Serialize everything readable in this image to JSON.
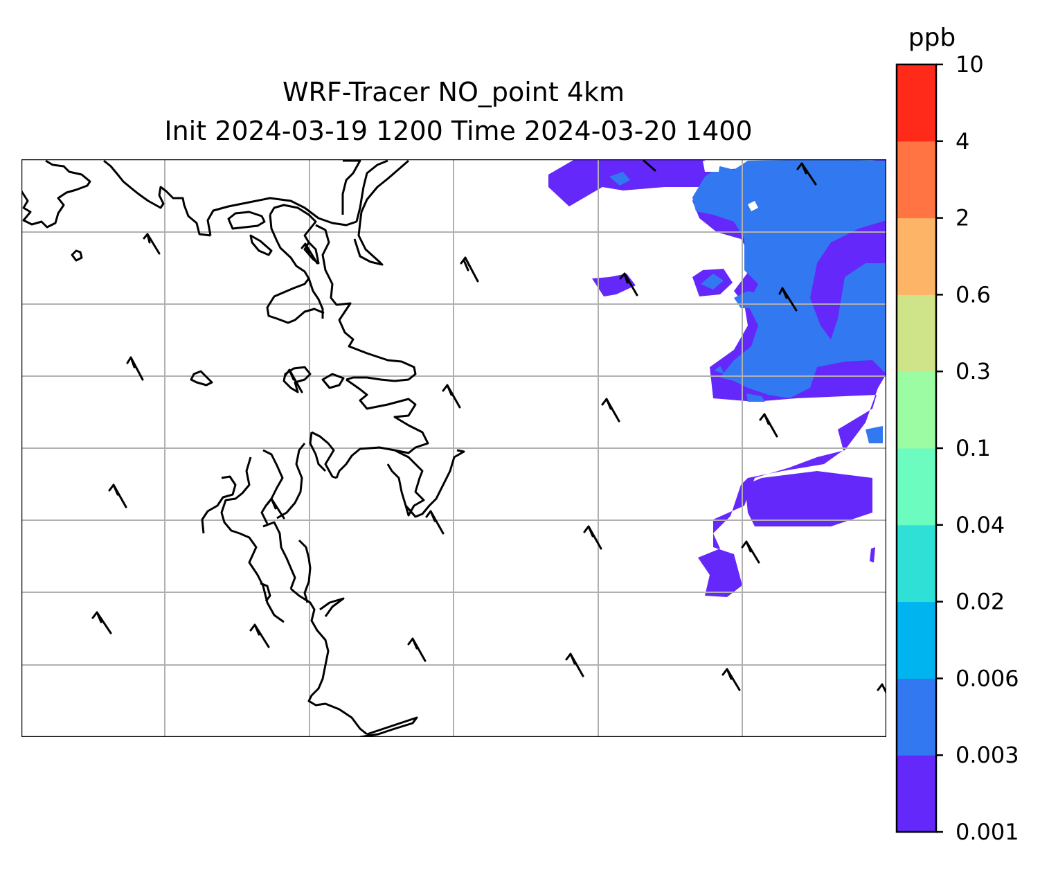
{
  "title": {
    "line1": "WRF-Tracer NO_point 4km",
    "line2": "Init 2024-03-19 1200 Time 2024-03-20 1400"
  },
  "colorbar": {
    "unit": "ppb",
    "levels": [
      "0.001",
      "0.003",
      "0.006",
      "0.02",
      "0.04",
      "0.1",
      "0.3",
      "0.6",
      "2",
      "4",
      "10"
    ],
    "colors": [
      "#6428fa",
      "#3278f0",
      "#00b4f0",
      "#2ee0d6",
      "#6cfcbf",
      "#9cfca4",
      "#cfe388",
      "#fdb466",
      "#ff7442",
      "#ff2a1a"
    ]
  },
  "map": {
    "plume_colors": {
      "level1": "#6428fa",
      "level2": "#3278f0"
    },
    "gridline_color": "#b0b0b0",
    "wind_barb_style": "barb"
  }
}
